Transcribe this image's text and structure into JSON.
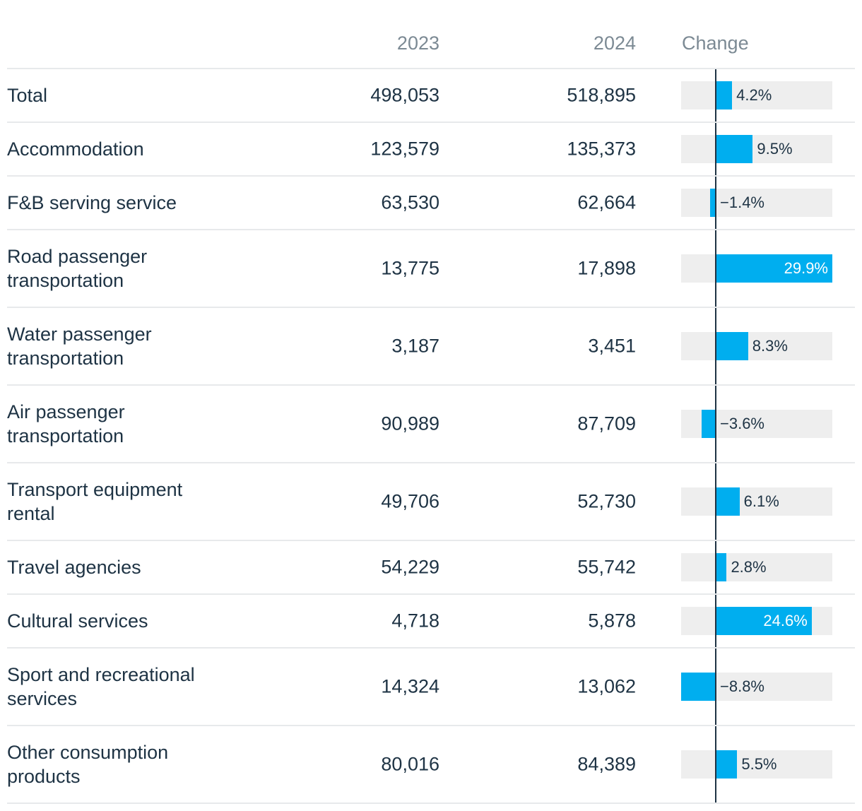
{
  "header": {
    "col_2023": "2023",
    "col_2024": "2024",
    "col_change": "Change"
  },
  "colors": {
    "bar": "#00aeef",
    "track": "#eeeeee",
    "text": "#1e3344",
    "muted": "#7c8a94",
    "divider": "#e7e9eb"
  },
  "chart_data": {
    "type": "table",
    "title": "",
    "columns": [
      "",
      "2023",
      "2024",
      "Change"
    ],
    "change_range": [
      -8.8,
      29.9
    ],
    "rows": [
      {
        "label": "Total",
        "v2023": "498,053",
        "v2024": "518,895",
        "change": 4.2,
        "change_label": "4.2%"
      },
      {
        "label": "Accommodation",
        "v2023": "123,579",
        "v2024": "135,373",
        "change": 9.5,
        "change_label": "9.5%"
      },
      {
        "label": "F&B serving service",
        "v2023": "63,530",
        "v2024": "62,664",
        "change": -1.4,
        "change_label": "−1.4%"
      },
      {
        "label": "Road passenger transportation",
        "v2023": "13,775",
        "v2024": "17,898",
        "change": 29.9,
        "change_label": "29.9%"
      },
      {
        "label": "Water passenger transportation",
        "v2023": "3,187",
        "v2024": "3,451",
        "change": 8.3,
        "change_label": "8.3%"
      },
      {
        "label": "Air passenger transportation",
        "v2023": "90,989",
        "v2024": "87,709",
        "change": -3.6,
        "change_label": "−3.6%"
      },
      {
        "label": "Transport equipment rental",
        "v2023": "49,706",
        "v2024": "52,730",
        "change": 6.1,
        "change_label": "6.1%"
      },
      {
        "label": "Travel agencies",
        "v2023": "54,229",
        "v2024": "55,742",
        "change": 2.8,
        "change_label": "2.8%"
      },
      {
        "label": "Cultural services",
        "v2023": "4,718",
        "v2024": "5,878",
        "change": 24.6,
        "change_label": "24.6%"
      },
      {
        "label": "Sport and recreational services",
        "v2023": "14,324",
        "v2024": "13,062",
        "change": -8.8,
        "change_label": "−8.8%"
      },
      {
        "label": "Other consumption products",
        "v2023": "80,016",
        "v2024": "84,389",
        "change": 5.5,
        "change_label": "5.5%"
      }
    ]
  }
}
